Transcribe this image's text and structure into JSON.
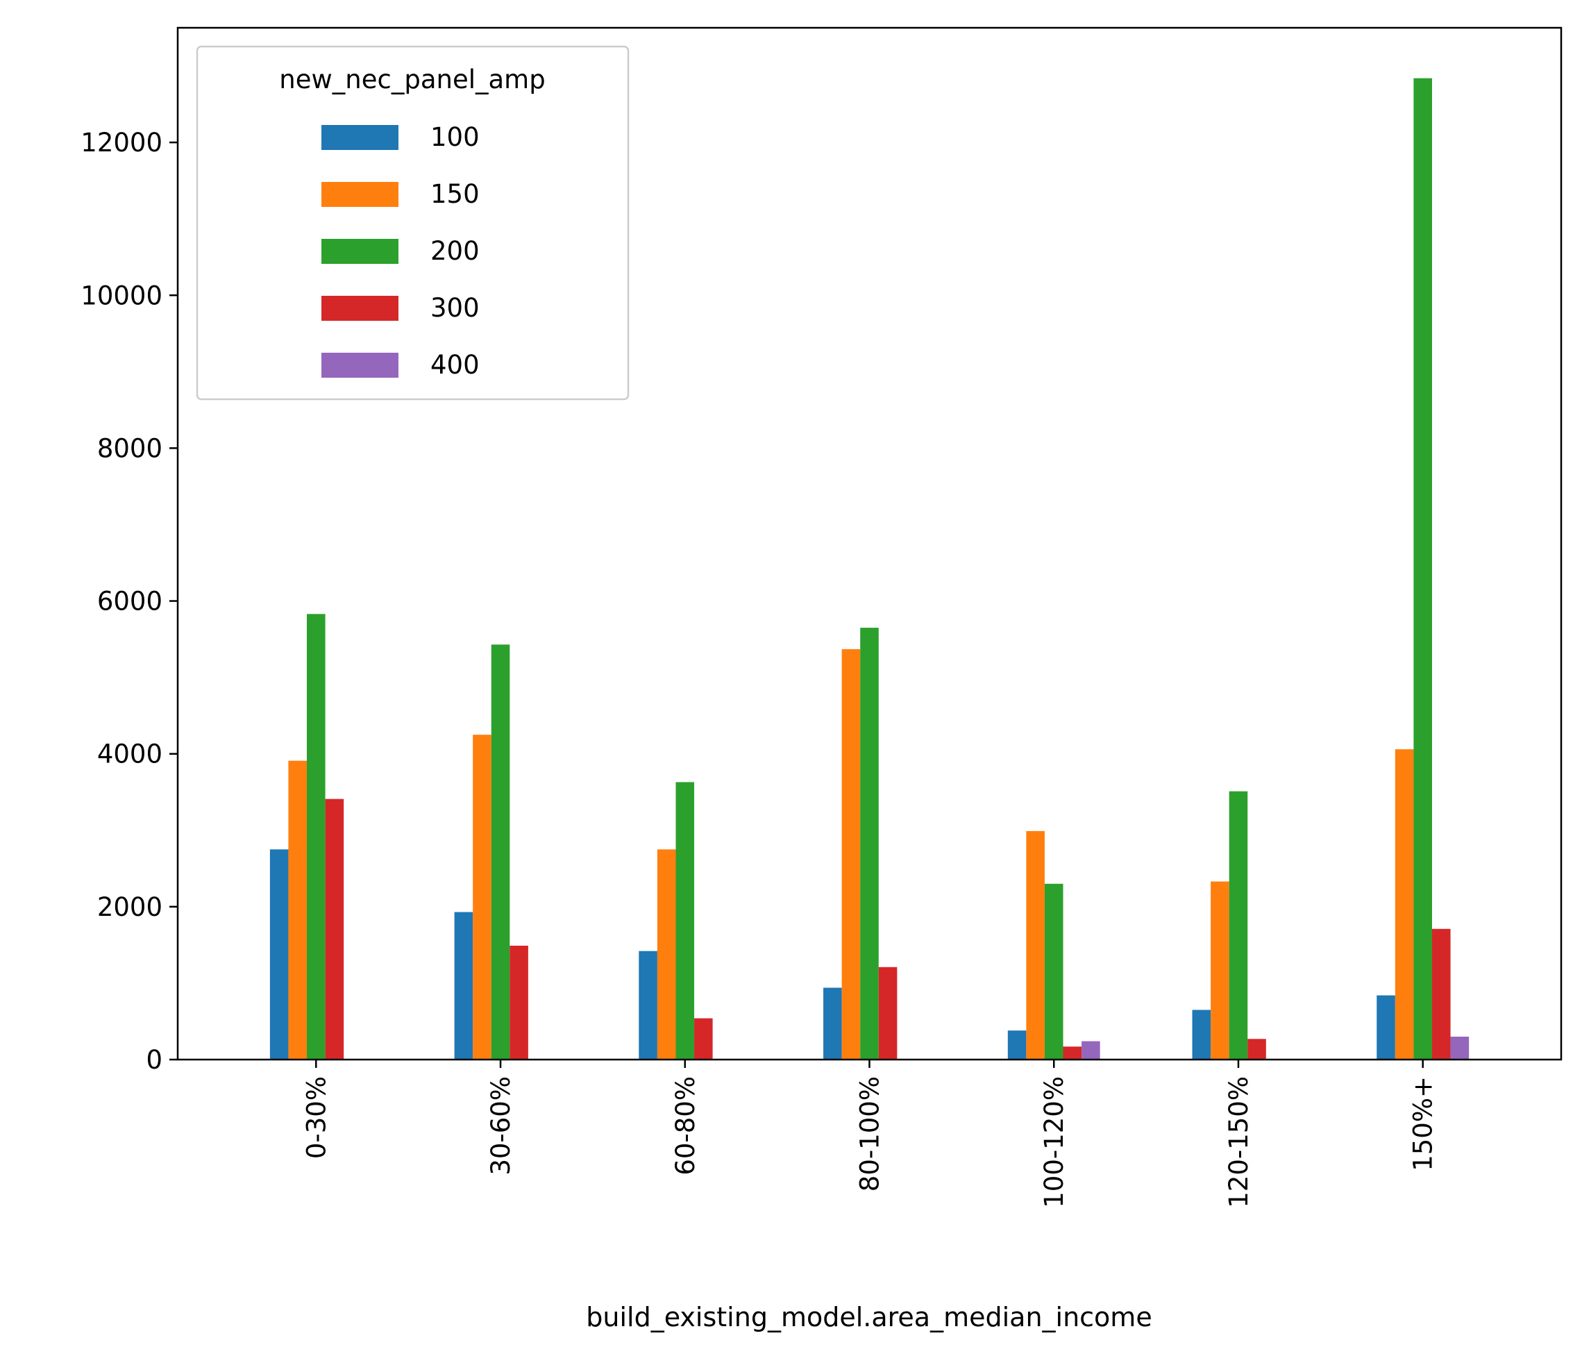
{
  "chart_data": {
    "type": "bar",
    "title": "",
    "xlabel": "build_existing_model.area_median_income",
    "ylabel": "",
    "ylim": [
      0,
      13500
    ],
    "yticks": [
      0,
      2000,
      4000,
      6000,
      8000,
      10000,
      12000
    ],
    "ytick_labels": [
      "0",
      "2000",
      "4000",
      "6000",
      "8000",
      "10000",
      "12000"
    ],
    "grid": false,
    "legend": {
      "title": "new_nec_panel_amp",
      "placement": "top-left"
    },
    "categories": [
      "0-30%",
      "30-60%",
      "60-80%",
      "80-100%",
      "100-120%",
      "120-150%",
      "150%+"
    ],
    "series": [
      {
        "name": "100",
        "color": "#1f77b4",
        "values": [
          2750,
          1930,
          1420,
          940,
          380,
          650,
          840
        ]
      },
      {
        "name": "150",
        "color": "#ff7f0e",
        "values": [
          3910,
          4250,
          2750,
          5370,
          2990,
          2330,
          4060
        ]
      },
      {
        "name": "200",
        "color": "#2ca02c",
        "values": [
          5830,
          5430,
          3630,
          5650,
          2300,
          3510,
          12840
        ]
      },
      {
        "name": "300",
        "color": "#d62728",
        "values": [
          3410,
          1490,
          540,
          1210,
          170,
          270,
          1710
        ]
      },
      {
        "name": "400",
        "color": "#9467bd",
        "values": [
          0,
          0,
          0,
          0,
          240,
          0,
          300
        ]
      }
    ]
  }
}
